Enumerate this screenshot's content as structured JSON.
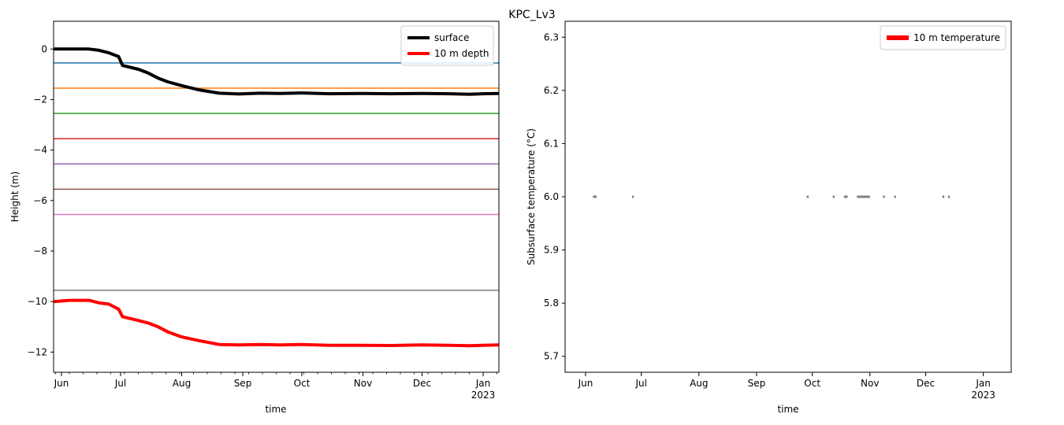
{
  "figure": {
    "suptitle": "KPC_Lv3"
  },
  "chart_data": [
    {
      "type": "line",
      "xlabel": "time",
      "ylabel": "Height (m)",
      "x_range": [
        "2022-05-28",
        "2023-01-09"
      ],
      "ylim": [
        -12.8,
        1.1
      ],
      "y_ticks": [
        0,
        -2,
        -4,
        -6,
        -8,
        -10,
        -12
      ],
      "y_tick_labels": [
        "0",
        "−2",
        "−4",
        "−6",
        "−8",
        "−10",
        "−12"
      ],
      "x_ticks": [
        "2022-06-01",
        "2022-07-01",
        "2022-08-01",
        "2022-09-01",
        "2022-10-01",
        "2022-11-01",
        "2022-12-01",
        "2023-01-01"
      ],
      "x_tick_labels": [
        "Jun",
        "Jul",
        "Aug",
        "Sep",
        "Oct",
        "Nov",
        "Dec",
        "Jan"
      ],
      "x_year_label": "2023",
      "grid": false,
      "legend": {
        "position": "top-right",
        "entries": [
          {
            "name": "surface",
            "color": "#000000"
          },
          {
            "name": "10 m depth",
            "color": "#ff0000"
          }
        ]
      },
      "depth_lines": [
        {
          "y": -0.55,
          "color": "#1f77b4"
        },
        {
          "y": -1.55,
          "color": "#ff7f0e"
        },
        {
          "y": -2.55,
          "color": "#2ca02c"
        },
        {
          "y": -3.55,
          "color": "#d62728"
        },
        {
          "y": -4.55,
          "color": "#9467bd"
        },
        {
          "y": -5.55,
          "color": "#8c564b"
        },
        {
          "y": -6.55,
          "color": "#e377c2"
        },
        {
          "y": -9.55,
          "color": "#7f7f7f"
        }
      ],
      "series": [
        {
          "name": "surface",
          "color": "#000000",
          "points": [
            [
              "2022-05-28",
              0.0
            ],
            [
              "2022-06-05",
              0.0
            ],
            [
              "2022-06-15",
              0.0
            ],
            [
              "2022-06-20",
              -0.05
            ],
            [
              "2022-06-25",
              -0.15
            ],
            [
              "2022-06-30",
              -0.3
            ],
            [
              "2022-07-02",
              -0.65
            ],
            [
              "2022-07-10",
              -0.8
            ],
            [
              "2022-07-15",
              -0.95
            ],
            [
              "2022-07-20",
              -1.15
            ],
            [
              "2022-07-25",
              -1.3
            ],
            [
              "2022-08-01",
              -1.45
            ],
            [
              "2022-08-10",
              -1.62
            ],
            [
              "2022-08-20",
              -1.75
            ],
            [
              "2022-08-30",
              -1.78
            ],
            [
              "2022-09-10",
              -1.75
            ],
            [
              "2022-09-20",
              -1.76
            ],
            [
              "2022-10-01",
              -1.74
            ],
            [
              "2022-10-15",
              -1.77
            ],
            [
              "2022-11-01",
              -1.76
            ],
            [
              "2022-11-15",
              -1.77
            ],
            [
              "2022-12-01",
              -1.76
            ],
            [
              "2022-12-15",
              -1.77
            ],
            [
              "2022-12-25",
              -1.79
            ],
            [
              "2023-01-01",
              -1.77
            ],
            [
              "2023-01-09",
              -1.76
            ]
          ]
        },
        {
          "name": "10 m depth",
          "color": "#ff0000",
          "points": [
            [
              "2022-05-28",
              -10.0
            ],
            [
              "2022-06-05",
              -9.95
            ],
            [
              "2022-06-15",
              -9.95
            ],
            [
              "2022-06-20",
              -10.05
            ],
            [
              "2022-06-25",
              -10.1
            ],
            [
              "2022-06-30",
              -10.3
            ],
            [
              "2022-07-02",
              -10.6
            ],
            [
              "2022-07-10",
              -10.75
            ],
            [
              "2022-07-15",
              -10.85
            ],
            [
              "2022-07-20",
              -11.0
            ],
            [
              "2022-07-25",
              -11.2
            ],
            [
              "2022-08-01",
              -11.4
            ],
            [
              "2022-08-10",
              -11.55
            ],
            [
              "2022-08-20",
              -11.7
            ],
            [
              "2022-08-30",
              -11.72
            ],
            [
              "2022-09-10",
              -11.7
            ],
            [
              "2022-09-20",
              -11.72
            ],
            [
              "2022-10-01",
              -11.7
            ],
            [
              "2022-10-15",
              -11.73
            ],
            [
              "2022-11-01",
              -11.73
            ],
            [
              "2022-11-15",
              -11.74
            ],
            [
              "2022-12-01",
              -11.72
            ],
            [
              "2022-12-15",
              -11.73
            ],
            [
              "2022-12-25",
              -11.75
            ],
            [
              "2023-01-01",
              -11.73
            ],
            [
              "2023-01-09",
              -11.72
            ]
          ]
        }
      ]
    },
    {
      "type": "scatter",
      "xlabel": "time",
      "ylabel": "Subsurface temperature (°C)",
      "x_range": [
        "2022-05-21",
        "2023-01-16"
      ],
      "ylim": [
        5.67,
        6.33
      ],
      "y_ticks": [
        5.7,
        5.8,
        5.9,
        6.0,
        6.1,
        6.2,
        6.3
      ],
      "y_tick_labels": [
        "5.7",
        "5.8",
        "5.9",
        "6.0",
        "6.1",
        "6.2",
        "6.3"
      ],
      "x_ticks": [
        "2022-06-01",
        "2022-07-01",
        "2022-08-01",
        "2022-09-01",
        "2022-10-01",
        "2022-11-01",
        "2022-12-01",
        "2023-01-01"
      ],
      "x_tick_labels": [
        "Jun",
        "Jul",
        "Aug",
        "Sep",
        "Oct",
        "Nov",
        "Dec",
        "Jan"
      ],
      "x_year_label": "2023",
      "grid": false,
      "legend": {
        "position": "top-right",
        "entries": [
          {
            "name": "10 m temperature",
            "color": "#ff0000"
          }
        ]
      },
      "series": [
        {
          "name": "10 m temperature",
          "color": "#7f7f7f",
          "segments": [
            [
              "2022-06-05",
              "2022-06-07"
            ],
            [
              "2022-06-26",
              "2022-06-27"
            ],
            [
              "2022-09-28",
              "2022-09-29"
            ],
            [
              "2022-10-12",
              "2022-10-13"
            ],
            [
              "2022-10-18",
              "2022-10-20"
            ],
            [
              "2022-10-25",
              "2022-11-01"
            ],
            [
              "2022-11-08",
              "2022-11-09"
            ],
            [
              "2022-11-14",
              "2022-11-15"
            ],
            [
              "2022-12-10",
              "2022-12-11"
            ],
            [
              "2022-12-13",
              "2022-12-14"
            ]
          ],
          "value": 6.0
        }
      ]
    }
  ]
}
